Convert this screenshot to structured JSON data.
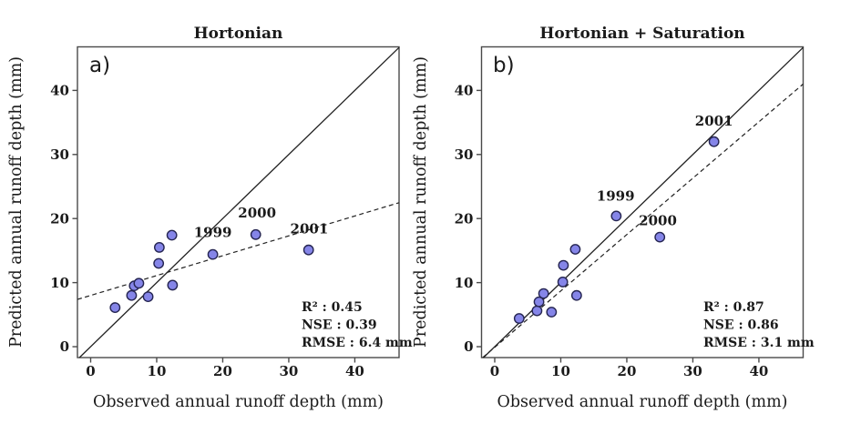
{
  "figure": {
    "background": "#ffffff",
    "text_color": "#1a1a1a",
    "frame_color": "#4a4a4a",
    "line_color": "#222222"
  },
  "chart_data": [
    {
      "type": "scatter",
      "panel_letter": "a)",
      "title": "Hortonian",
      "xlabel": "Observed annual runoff depth (mm)",
      "ylabel": "Predicted annual runoff depth (mm)",
      "xlim": [
        -2.0,
        46.7
      ],
      "ylim": [
        -1.7,
        46.8
      ],
      "xticks": [
        0,
        10,
        20,
        30,
        40
      ],
      "yticks": [
        0,
        10,
        20,
        30,
        40
      ],
      "points": [
        [
          3.7,
          6.1
        ],
        [
          6.2,
          8.0
        ],
        [
          6.6,
          9.5
        ],
        [
          7.3,
          9.9
        ],
        [
          8.7,
          7.8
        ],
        [
          10.3,
          13.0
        ],
        [
          10.4,
          15.5
        ],
        [
          12.3,
          17.4
        ],
        [
          12.4,
          9.6
        ],
        [
          18.5,
          14.4
        ],
        [
          25.0,
          17.5
        ],
        [
          33.0,
          15.1
        ]
      ],
      "annotations": [
        {
          "label": "1999",
          "x": 18.5,
          "y": 17.8
        },
        {
          "label": "2000",
          "x": 25.2,
          "y": 20.9
        },
        {
          "label": "2001",
          "x": 33.1,
          "y": 18.4
        }
      ],
      "identity_line": true,
      "regression": {
        "slope": 0.31,
        "intercept": 8.0,
        "style": "dashed"
      },
      "stats": [
        "R² : 0.45",
        "NSE : 0.39",
        "RMSE : 6.4 mm"
      ],
      "marker": {
        "fill": "#8585e8",
        "stroke": "#252552"
      }
    },
    {
      "type": "scatter",
      "panel_letter": "b)",
      "title": "Hortonian + Saturation",
      "xlabel": "Observed annual runoff depth (mm)",
      "ylabel": "Predicted annual runoff depth (mm)",
      "xlim": [
        -2.0,
        46.7
      ],
      "ylim": [
        -1.7,
        46.8
      ],
      "xticks": [
        0,
        10,
        20,
        30,
        40
      ],
      "yticks": [
        0,
        10,
        20,
        30,
        40
      ],
      "points": [
        [
          3.7,
          4.4
        ],
        [
          6.4,
          5.6
        ],
        [
          6.7,
          7.0
        ],
        [
          7.4,
          8.3
        ],
        [
          8.6,
          5.4
        ],
        [
          10.3,
          10.1
        ],
        [
          10.4,
          12.7
        ],
        [
          12.2,
          15.2
        ],
        [
          12.4,
          8.0
        ],
        [
          18.4,
          20.4
        ],
        [
          25.0,
          17.1
        ],
        [
          33.2,
          32.0
        ]
      ],
      "annotations": [
        {
          "label": "1999",
          "x": 18.3,
          "y": 23.5
        },
        {
          "label": "2000",
          "x": 24.7,
          "y": 19.7
        },
        {
          "label": "2001",
          "x": 33.2,
          "y": 35.2
        }
      ],
      "identity_line": true,
      "regression": {
        "slope": 0.88,
        "intercept": -0.1,
        "style": "dashed"
      },
      "stats": [
        "R² : 0.87",
        "NSE : 0.86",
        "RMSE : 3.1 mm"
      ],
      "marker": {
        "fill": "#8585e8",
        "stroke": "#252552"
      }
    }
  ]
}
